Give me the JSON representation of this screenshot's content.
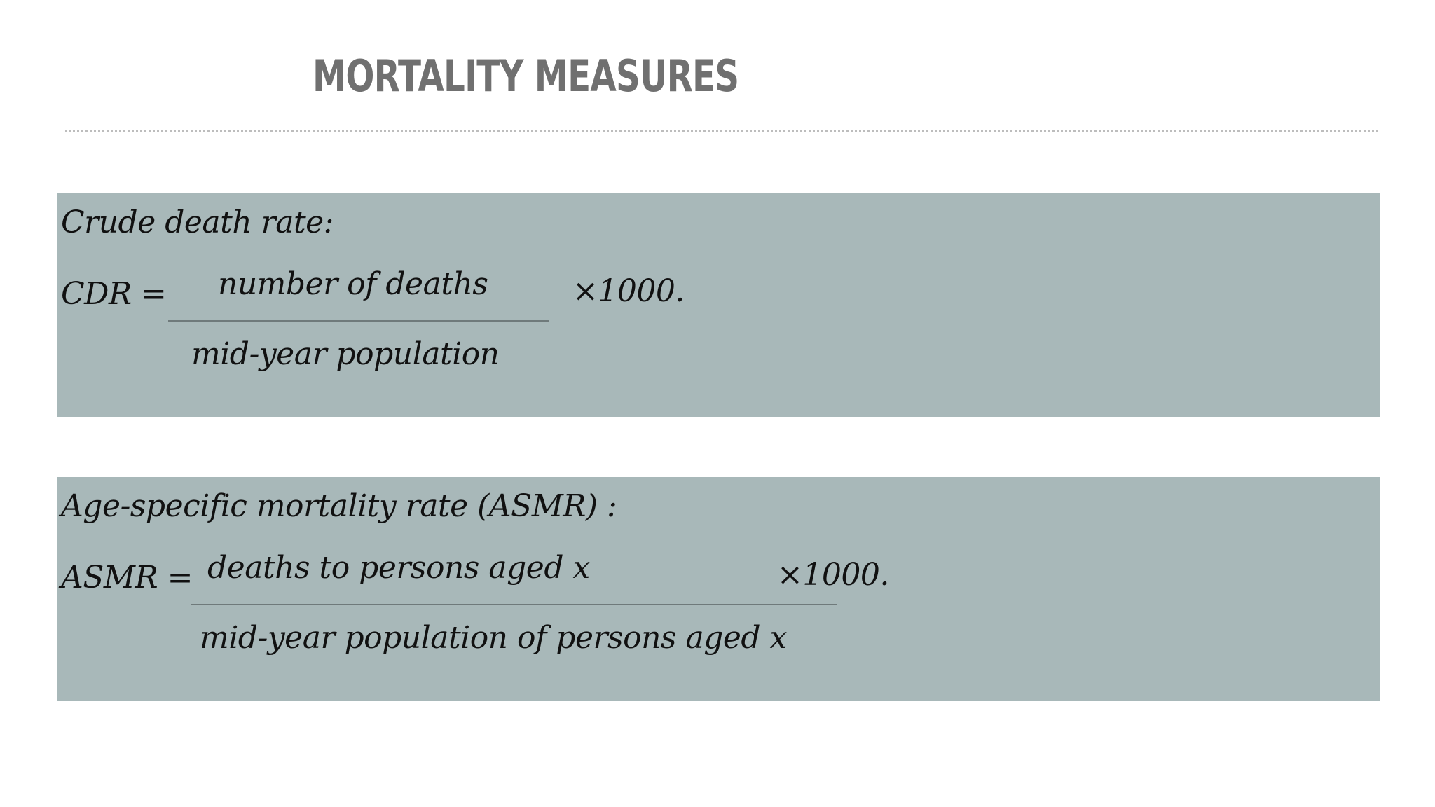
{
  "slide": {
    "title": "MORTALITY MEASURES"
  },
  "cdr_box": {
    "heading": "Crude death rate:",
    "lhs": "CDR =",
    "numerator": "number of deaths",
    "denominator": "mid-year population",
    "multiplier": "×1000."
  },
  "asmr_box": {
    "heading": "Age-specific mortality rate (ASMR) :",
    "lhs": "ASMR =",
    "numerator": "deaths to persons aged x",
    "denominator": "mid-year population of persons aged x",
    "multiplier": "×1000."
  },
  "colors": {
    "title": "#707070",
    "box_background": "#a8b8b9",
    "text": "#111111",
    "fraction_rule": "#6f7a7b"
  }
}
